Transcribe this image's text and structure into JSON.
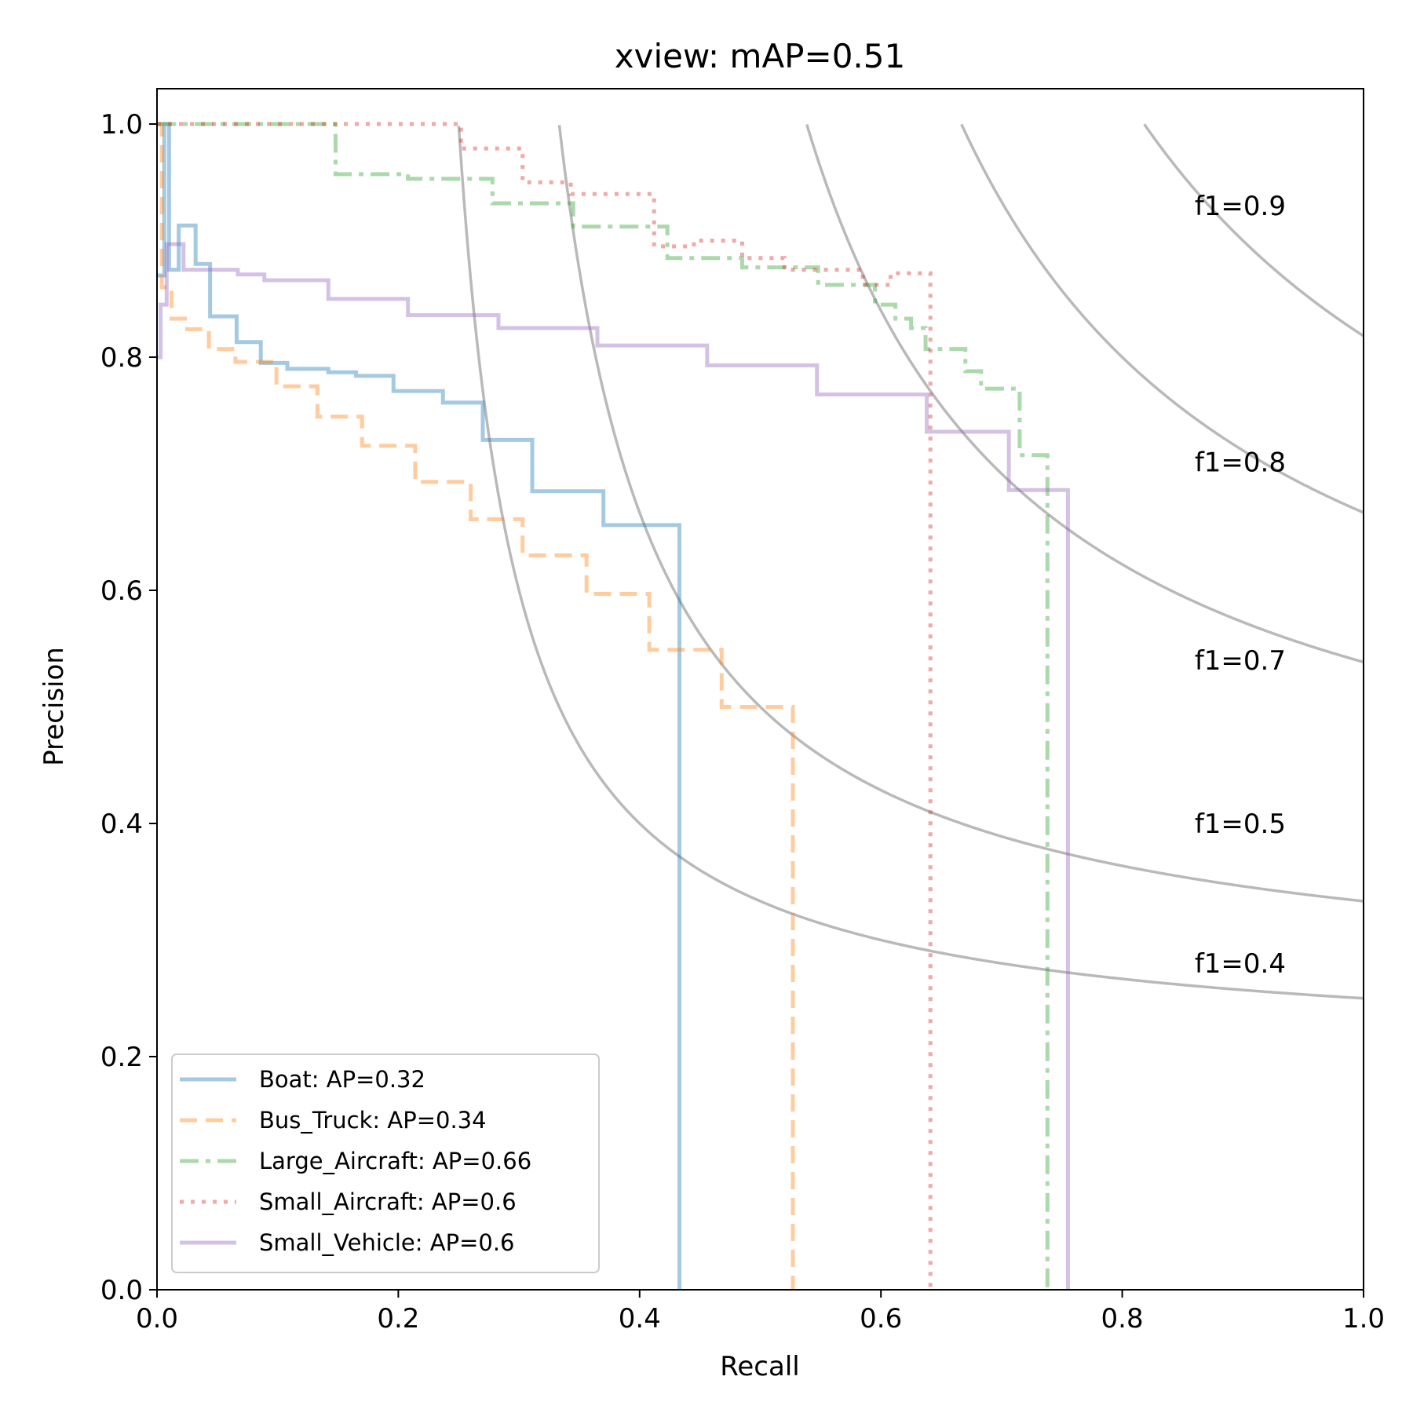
{
  "chart_data": {
    "type": "line",
    "title": "xview:  mAP=0.51",
    "xlabel": "Recall",
    "ylabel": "Precision",
    "xlim": [
      0.0,
      1.0
    ],
    "ylim": [
      0.0,
      1.03
    ],
    "xticks": [
      "0.0",
      "0.2",
      "0.4",
      "0.6",
      "0.8",
      "1.0"
    ],
    "yticks": [
      "0.0",
      "0.2",
      "0.4",
      "0.6",
      "0.8",
      "1.0"
    ],
    "legend_position": "lower-left",
    "iso_f1": [
      {
        "f1": 0.4,
        "label": "f1=0.4",
        "label_y": 0.28
      },
      {
        "f1": 0.5,
        "label": "f1=0.5",
        "label_y": 0.4
      },
      {
        "f1": 0.7,
        "label": "f1=0.7",
        "label_y": 0.54
      },
      {
        "f1": 0.8,
        "label": "f1=0.8",
        "label_y": 0.71
      },
      {
        "f1": 0.9,
        "label": "f1=0.9",
        "label_y": 0.93
      }
    ],
    "series": [
      {
        "name": "Boat",
        "legend": "Boat: AP=0.32",
        "ap": 0.32,
        "color": "#1f77b4",
        "style": "solid",
        "points": [
          [
            0,
            0.87
          ],
          [
            0.006,
            0.87
          ],
          [
            0.006,
            1.0
          ],
          [
            0.01,
            1.0
          ],
          [
            0.01,
            0.875
          ],
          [
            0.018,
            0.875
          ],
          [
            0.018,
            0.913
          ],
          [
            0.032,
            0.913
          ],
          [
            0.032,
            0.88
          ],
          [
            0.044,
            0.88
          ],
          [
            0.044,
            0.835
          ],
          [
            0.066,
            0.835
          ],
          [
            0.066,
            0.813
          ],
          [
            0.086,
            0.813
          ],
          [
            0.086,
            0.795
          ],
          [
            0.108,
            0.795
          ],
          [
            0.108,
            0.79
          ],
          [
            0.142,
            0.79
          ],
          [
            0.142,
            0.787
          ],
          [
            0.165,
            0.787
          ],
          [
            0.165,
            0.784
          ],
          [
            0.196,
            0.784
          ],
          [
            0.196,
            0.771
          ],
          [
            0.237,
            0.771
          ],
          [
            0.237,
            0.761
          ],
          [
            0.27,
            0.761
          ],
          [
            0.27,
            0.729
          ],
          [
            0.311,
            0.729
          ],
          [
            0.311,
            0.685
          ],
          [
            0.37,
            0.685
          ],
          [
            0.37,
            0.656
          ],
          [
            0.433,
            0.656
          ],
          [
            0.433,
            0.0
          ]
        ]
      },
      {
        "name": "Bus_Truck",
        "legend": "Bus_Truck: AP=0.34",
        "ap": 0.34,
        "color": "#ff7f0e",
        "style": "dashed",
        "points": [
          [
            0,
            1.0
          ],
          [
            0.004,
            1.0
          ],
          [
            0.004,
            0.86
          ],
          [
            0.012,
            0.86
          ],
          [
            0.012,
            0.833
          ],
          [
            0.025,
            0.833
          ],
          [
            0.025,
            0.824
          ],
          [
            0.043,
            0.824
          ],
          [
            0.043,
            0.807
          ],
          [
            0.065,
            0.807
          ],
          [
            0.065,
            0.796
          ],
          [
            0.099,
            0.796
          ],
          [
            0.099,
            0.775
          ],
          [
            0.133,
            0.775
          ],
          [
            0.133,
            0.749
          ],
          [
            0.17,
            0.749
          ],
          [
            0.17,
            0.724
          ],
          [
            0.214,
            0.724
          ],
          [
            0.214,
            0.693
          ],
          [
            0.26,
            0.693
          ],
          [
            0.26,
            0.661
          ],
          [
            0.303,
            0.661
          ],
          [
            0.303,
            0.63
          ],
          [
            0.356,
            0.63
          ],
          [
            0.356,
            0.597
          ],
          [
            0.408,
            0.597
          ],
          [
            0.408,
            0.549
          ],
          [
            0.468,
            0.549
          ],
          [
            0.468,
            0.5
          ],
          [
            0.527,
            0.5
          ],
          [
            0.527,
            0.0
          ]
        ]
      },
      {
        "name": "Large_Aircraft",
        "legend": "Large_Aircraft: AP=0.66",
        "ap": 0.66,
        "color": "#2ca02c",
        "style": "dashdot",
        "points": [
          [
            0,
            1.0
          ],
          [
            0.148,
            1.0
          ],
          [
            0.148,
            0.957
          ],
          [
            0.208,
            0.957
          ],
          [
            0.208,
            0.953
          ],
          [
            0.278,
            0.953
          ],
          [
            0.278,
            0.932
          ],
          [
            0.345,
            0.932
          ],
          [
            0.345,
            0.912
          ],
          [
            0.423,
            0.912
          ],
          [
            0.423,
            0.885
          ],
          [
            0.485,
            0.885
          ],
          [
            0.485,
            0.877
          ],
          [
            0.548,
            0.877
          ],
          [
            0.548,
            0.862
          ],
          [
            0.595,
            0.862
          ],
          [
            0.595,
            0.845
          ],
          [
            0.612,
            0.845
          ],
          [
            0.612,
            0.833
          ],
          [
            0.625,
            0.833
          ],
          [
            0.625,
            0.825
          ],
          [
            0.637,
            0.825
          ],
          [
            0.637,
            0.807
          ],
          [
            0.67,
            0.807
          ],
          [
            0.67,
            0.788
          ],
          [
            0.683,
            0.788
          ],
          [
            0.683,
            0.773
          ],
          [
            0.715,
            0.773
          ],
          [
            0.715,
            0.716
          ],
          [
            0.738,
            0.716
          ],
          [
            0.738,
            0.0
          ]
        ]
      },
      {
        "name": "Small_Aircraft",
        "legend": "Small_Aircraft: AP=0.6",
        "ap": 0.6,
        "color": "#d62728",
        "style": "dotted",
        "points": [
          [
            0,
            1.0
          ],
          [
            0.252,
            1.0
          ],
          [
            0.252,
            0.979
          ],
          [
            0.303,
            0.979
          ],
          [
            0.303,
            0.95
          ],
          [
            0.343,
            0.95
          ],
          [
            0.343,
            0.94
          ],
          [
            0.412,
            0.94
          ],
          [
            0.412,
            0.895
          ],
          [
            0.445,
            0.895
          ],
          [
            0.445,
            0.9
          ],
          [
            0.485,
            0.9
          ],
          [
            0.485,
            0.885
          ],
          [
            0.52,
            0.885
          ],
          [
            0.52,
            0.875
          ],
          [
            0.585,
            0.875
          ],
          [
            0.585,
            0.862
          ],
          [
            0.608,
            0.862
          ],
          [
            0.608,
            0.872
          ],
          [
            0.641,
            0.872
          ],
          [
            0.641,
            0.0
          ]
        ]
      },
      {
        "name": "Small_Vehicle",
        "legend": "Small_Vehicle: AP=0.6",
        "ap": 0.6,
        "color": "#9467bd",
        "style": "solid",
        "points": [
          [
            0,
            0.8
          ],
          [
            0.003,
            0.8
          ],
          [
            0.003,
            0.845
          ],
          [
            0.008,
            0.845
          ],
          [
            0.008,
            0.897
          ],
          [
            0.022,
            0.897
          ],
          [
            0.022,
            0.875
          ],
          [
            0.067,
            0.875
          ],
          [
            0.067,
            0.871
          ],
          [
            0.089,
            0.871
          ],
          [
            0.089,
            0.866
          ],
          [
            0.142,
            0.866
          ],
          [
            0.142,
            0.85
          ],
          [
            0.208,
            0.85
          ],
          [
            0.208,
            0.836
          ],
          [
            0.283,
            0.836
          ],
          [
            0.283,
            0.825
          ],
          [
            0.365,
            0.825
          ],
          [
            0.365,
            0.81
          ],
          [
            0.456,
            0.81
          ],
          [
            0.456,
            0.793
          ],
          [
            0.547,
            0.793
          ],
          [
            0.547,
            0.768
          ],
          [
            0.638,
            0.768
          ],
          [
            0.638,
            0.736
          ],
          [
            0.706,
            0.736
          ],
          [
            0.706,
            0.686
          ],
          [
            0.755,
            0.686
          ],
          [
            0.755,
            0.0
          ]
        ]
      }
    ]
  }
}
